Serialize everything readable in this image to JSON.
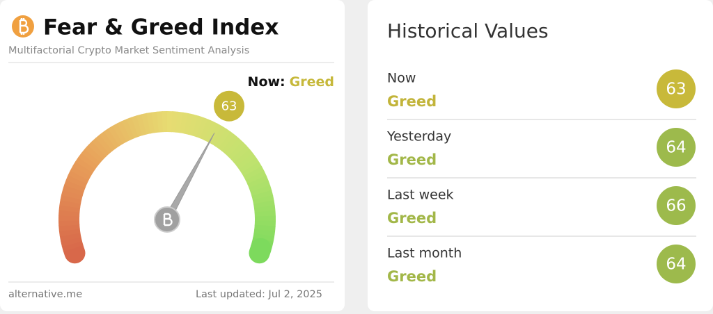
{
  "header": {
    "title": "Fear & Greed Index",
    "subtitle": "Multifactorial Crypto Market Sentiment Analysis"
  },
  "now": {
    "label": "Now:",
    "classification": "Greed",
    "color": "#c6b83a"
  },
  "gauge": {
    "value": 63,
    "range": [
      0,
      100
    ],
    "color": "#c8b93a"
  },
  "footer": {
    "source": "alternative.me",
    "updated": "Last updated: Jul 2, 2025"
  },
  "history": {
    "title": "Historical Values",
    "items": [
      {
        "label": "Now",
        "classification": "Greed",
        "value": 63,
        "color": "#c8b93a",
        "text_color": "#c2b43a"
      },
      {
        "label": "Yesterday",
        "classification": "Greed",
        "value": 64,
        "color": "#9dba4c",
        "text_color": "#a2b748"
      },
      {
        "label": "Last week",
        "classification": "Greed",
        "value": 66,
        "color": "#9dba4c",
        "text_color": "#a2b748"
      },
      {
        "label": "Last month",
        "classification": "Greed",
        "value": 64,
        "color": "#9dba4c",
        "text_color": "#a2b748"
      }
    ]
  }
}
